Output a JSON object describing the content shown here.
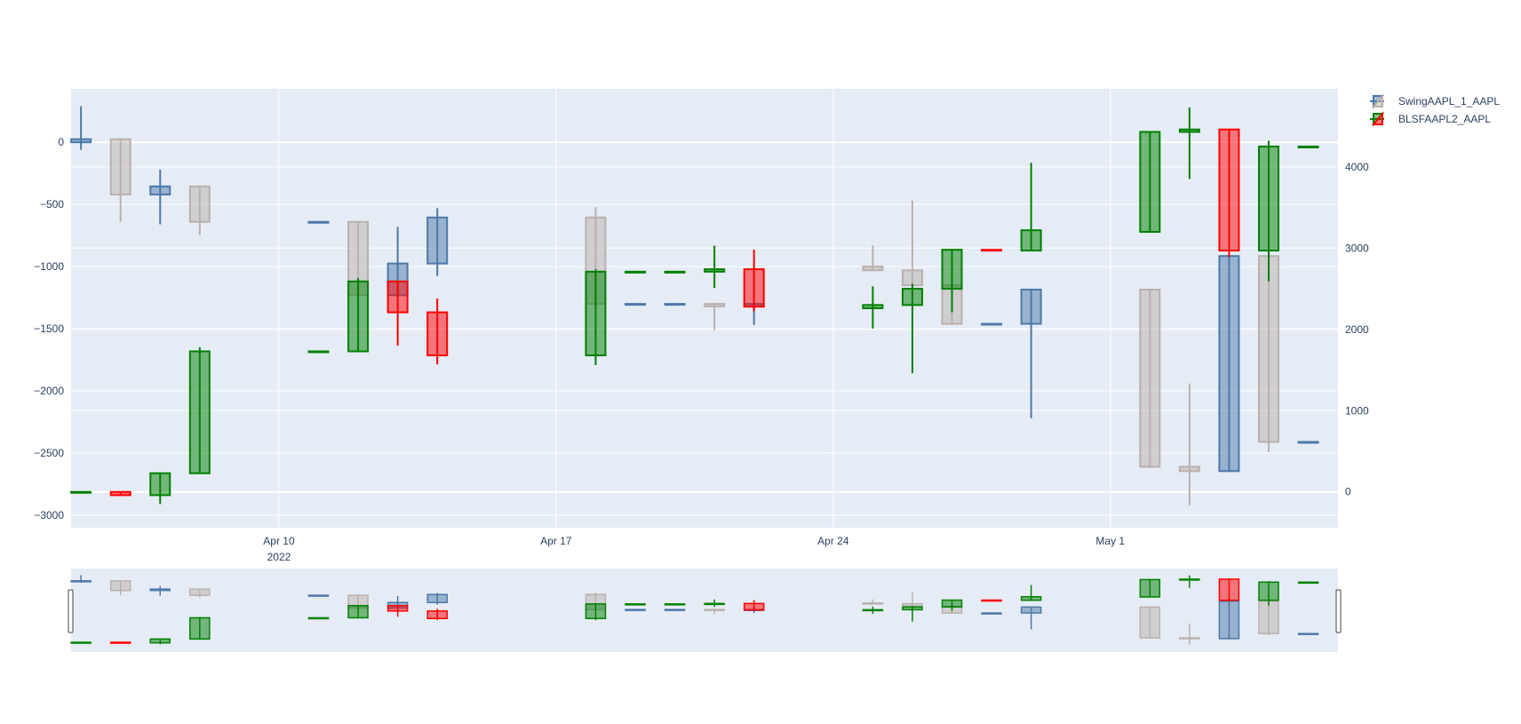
{
  "chart_data": {
    "type": "candlestick",
    "x_tick_labels": [
      {
        "date": "2022-04-10",
        "label": "Apr 10",
        "sublabel": "2022"
      },
      {
        "date": "2022-04-17",
        "label": "Apr 17",
        "sublabel": ""
      },
      {
        "date": "2022-04-24",
        "label": "Apr 24",
        "sublabel": ""
      },
      {
        "date": "2022-05-01",
        "label": "May 1",
        "sublabel": ""
      }
    ],
    "xlim": [
      "2022-04-04T18:00",
      "2022-05-06T18:00"
    ],
    "y_left": {
      "range": [
        -3100,
        430
      ],
      "ticks": [
        0,
        -500,
        -1000,
        -1500,
        -2000,
        -2500,
        -3000
      ],
      "tick_labels": [
        "0",
        "−500",
        "−1000",
        "−1500",
        "−2000",
        "−2500",
        "−3000"
      ]
    },
    "y_right": {
      "range": [
        -440,
        4960
      ],
      "ticks": [
        0,
        1000,
        2000,
        3000,
        4000
      ],
      "tick_labels": [
        "0",
        "1000",
        "2000",
        "3000",
        "4000"
      ]
    },
    "grid": true,
    "legend_position": "top-right",
    "rangeslider": true,
    "series": [
      {
        "name": "SwingAAPL_1_AAPL",
        "axis": "left",
        "increasing_color": "#4c78a8",
        "decreasing_color": "#bab0ac",
        "data": [
          {
            "date": "2022-04-05",
            "open": 0,
            "high": 290,
            "low": -60,
            "close": 25
          },
          {
            "date": "2022-04-06",
            "open": 25,
            "high": 25,
            "low": -640,
            "close": -420
          },
          {
            "date": "2022-04-07",
            "open": -420,
            "high": -220,
            "low": -660,
            "close": -355
          },
          {
            "date": "2022-04-08",
            "open": -355,
            "high": -355,
            "low": -745,
            "close": -640
          },
          {
            "date": "2022-04-11",
            "open": -640,
            "high": -640,
            "low": -640,
            "close": -640
          },
          {
            "date": "2022-04-12",
            "open": -640,
            "high": -640,
            "low": -1240,
            "close": -1230
          },
          {
            "date": "2022-04-13",
            "open": -1230,
            "high": -680,
            "low": -1230,
            "close": -975
          },
          {
            "date": "2022-04-14",
            "open": -975,
            "high": -530,
            "low": -1075,
            "close": -605
          },
          {
            "date": "2022-04-18",
            "open": -605,
            "high": -520,
            "low": -1310,
            "close": -1300
          },
          {
            "date": "2022-04-19",
            "open": -1300,
            "high": -1300,
            "low": -1300,
            "close": -1300
          },
          {
            "date": "2022-04-20",
            "open": -1300,
            "high": -1300,
            "low": -1300,
            "close": -1300
          },
          {
            "date": "2022-04-21",
            "open": -1300,
            "high": -1300,
            "low": -1510,
            "close": -1320
          },
          {
            "date": "2022-04-22",
            "open": -1320,
            "high": -1300,
            "low": -1470,
            "close": -1300
          },
          {
            "date": "2022-04-25",
            "open": -1000,
            "high": -830,
            "low": -1030,
            "close": -1030
          },
          {
            "date": "2022-04-26",
            "open": -1030,
            "high": -470,
            "low": -1150,
            "close": -1150
          },
          {
            "date": "2022-04-27",
            "open": -1150,
            "high": -1060,
            "low": -1470,
            "close": -1460
          },
          {
            "date": "2022-04-28",
            "open": -1460,
            "high": -1460,
            "low": -1460,
            "close": -1460
          },
          {
            "date": "2022-04-29",
            "open": -1460,
            "high": -1180,
            "low": -2220,
            "close": -1185
          },
          {
            "date": "2022-05-02",
            "open": -1185,
            "high": -1185,
            "low": -2620,
            "close": -2610
          },
          {
            "date": "2022-05-03",
            "open": -2610,
            "high": -1940,
            "low": -2920,
            "close": -2645
          },
          {
            "date": "2022-05-04",
            "open": -2645,
            "high": -910,
            "low": -2645,
            "close": -915
          },
          {
            "date": "2022-05-05",
            "open": -915,
            "high": -490,
            "low": -2490,
            "close": -2410
          },
          {
            "date": "2022-05-06",
            "open": -2410,
            "high": -2410,
            "low": -2410,
            "close": -2410
          }
        ]
      },
      {
        "name": "BLSFAAPL2_AAPL",
        "axis": "right",
        "increasing_color": "#008000",
        "decreasing_color": "#ff0000",
        "data": [
          {
            "date": "2022-04-05",
            "open": 0,
            "high": 0,
            "low": 0,
            "close": 0
          },
          {
            "date": "2022-04-06",
            "open": 0,
            "high": 0,
            "low": -40,
            "close": -40
          },
          {
            "date": "2022-04-07",
            "open": -40,
            "high": 230,
            "low": -150,
            "close": 230
          },
          {
            "date": "2022-04-08",
            "open": 230,
            "high": 1780,
            "low": 230,
            "close": 1730
          },
          {
            "date": "2022-04-11",
            "open": 1730,
            "high": 1730,
            "low": 1730,
            "close": 1730
          },
          {
            "date": "2022-04-12",
            "open": 1730,
            "high": 2630,
            "low": 1730,
            "close": 2590
          },
          {
            "date": "2022-04-13",
            "open": 2590,
            "high": 2590,
            "low": 1800,
            "close": 2210
          },
          {
            "date": "2022-04-14",
            "open": 2210,
            "high": 2380,
            "low": 1570,
            "close": 1680
          },
          {
            "date": "2022-04-18",
            "open": 1680,
            "high": 2740,
            "low": 1560,
            "close": 2710
          },
          {
            "date": "2022-04-19",
            "open": 2710,
            "high": 2710,
            "low": 2710,
            "close": 2710
          },
          {
            "date": "2022-04-20",
            "open": 2710,
            "high": 2710,
            "low": 2710,
            "close": 2710
          },
          {
            "date": "2022-04-21",
            "open": 2710,
            "high": 3030,
            "low": 2510,
            "close": 2740
          },
          {
            "date": "2022-04-22",
            "open": 2740,
            "high": 2980,
            "low": 2220,
            "close": 2280
          },
          {
            "date": "2022-04-25",
            "open": 2260,
            "high": 2530,
            "low": 2010,
            "close": 2300
          },
          {
            "date": "2022-04-26",
            "open": 2300,
            "high": 2560,
            "low": 1460,
            "close": 2500
          },
          {
            "date": "2022-04-27",
            "open": 2500,
            "high": 2970,
            "low": 2210,
            "close": 2980
          },
          {
            "date": "2022-04-28",
            "open": 2980,
            "high": 2980,
            "low": 2980,
            "close": 2970
          },
          {
            "date": "2022-04-29",
            "open": 2970,
            "high": 4050,
            "low": 2970,
            "close": 3220
          },
          {
            "date": "2022-05-02",
            "open": 3200,
            "high": 4430,
            "low": 3200,
            "close": 4430
          },
          {
            "date": "2022-05-03",
            "open": 4430,
            "high": 4730,
            "low": 3850,
            "close": 4460
          },
          {
            "date": "2022-05-04",
            "open": 4460,
            "high": 4460,
            "low": 2890,
            "close": 2970
          },
          {
            "date": "2022-05-05",
            "open": 2970,
            "high": 4320,
            "low": 2590,
            "close": 4250
          },
          {
            "date": "2022-05-06",
            "open": 4250,
            "high": 4250,
            "low": 4250,
            "close": 4250
          }
        ]
      }
    ]
  }
}
